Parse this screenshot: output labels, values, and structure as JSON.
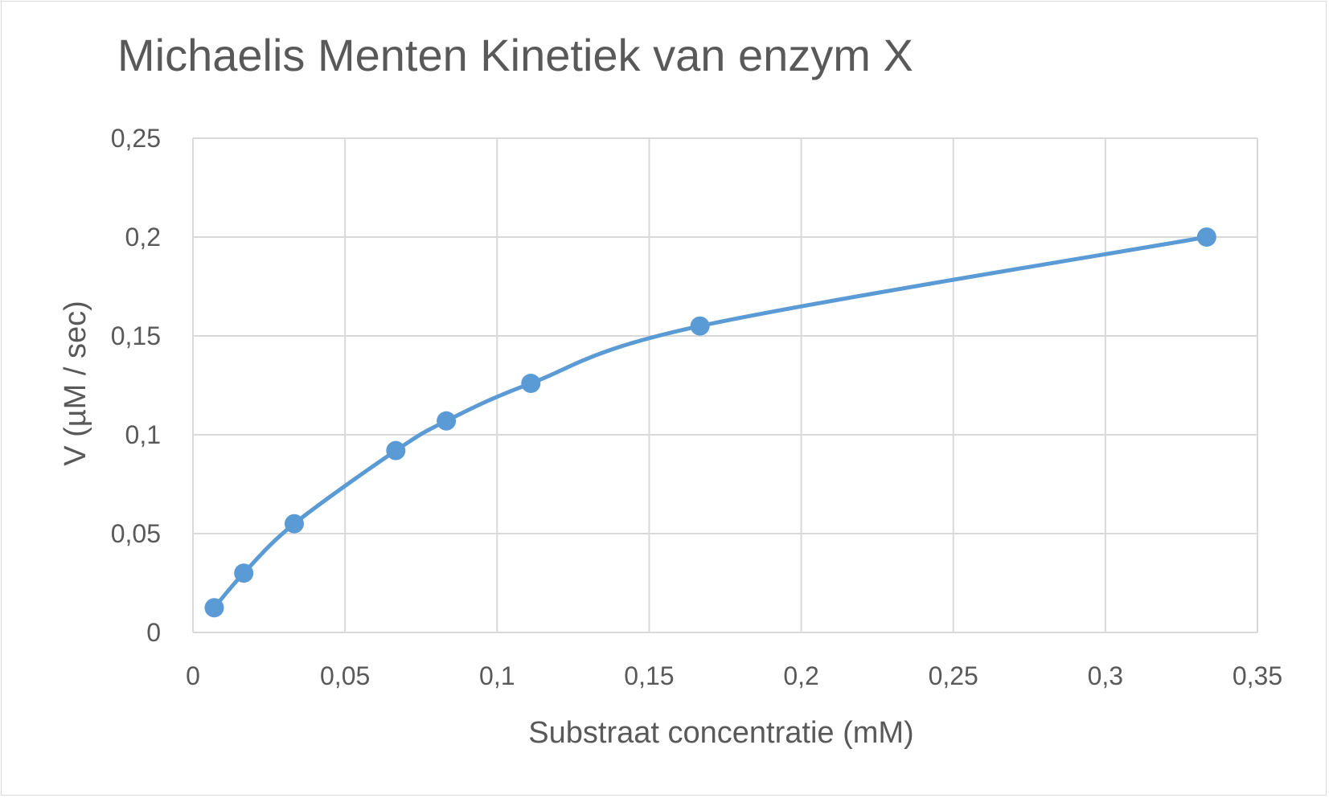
{
  "chart_data": {
    "type": "scatter",
    "title": "Michaelis Menten Kinetiek van enzym X",
    "xlabel": "Substraat concentratie (mM)",
    "ylabel": "V (µM / sec)",
    "xlim": [
      0,
      0.35
    ],
    "ylim": [
      0,
      0.25
    ],
    "x_ticks": [
      0,
      0.05,
      0.1,
      0.15,
      0.2,
      0.25,
      0.3,
      0.35
    ],
    "x_tick_labels": [
      "0",
      "0,05",
      "0,1",
      "0,15",
      "0,2",
      "0,25",
      "0,3",
      "0,35"
    ],
    "y_ticks": [
      0,
      0.05,
      0.1,
      0.15,
      0.2,
      0.25
    ],
    "y_tick_labels": [
      "0",
      "0,05",
      "0,1",
      "0,15",
      "0,2",
      "0,25"
    ],
    "grid": true,
    "smooth_line": true,
    "series": [
      {
        "color": "#5b9bd5",
        "points": [
          {
            "x": 0.007,
            "y": 0.0125
          },
          {
            "x": 0.0167,
            "y": 0.03
          },
          {
            "x": 0.0333,
            "y": 0.055
          },
          {
            "x": 0.0667,
            "y": 0.092
          },
          {
            "x": 0.0833,
            "y": 0.107
          },
          {
            "x": 0.1111,
            "y": 0.126
          },
          {
            "x": 0.1667,
            "y": 0.155
          },
          {
            "x": 0.3333,
            "y": 0.2
          }
        ]
      }
    ]
  }
}
